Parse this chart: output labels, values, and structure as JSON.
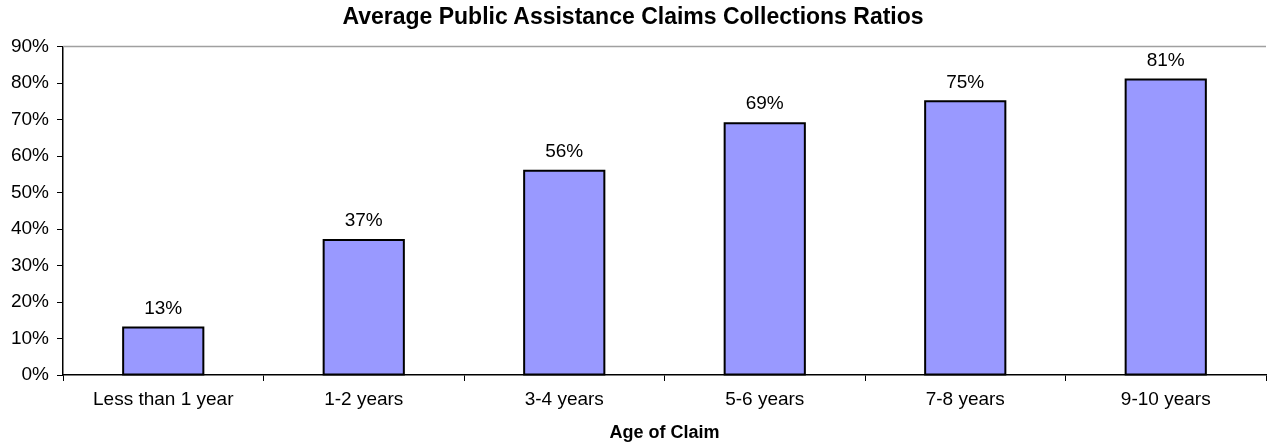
{
  "chart_data": {
    "type": "bar",
    "title": "Average Public Assistance Claims Collections Ratios",
    "xlabel": "Age of Claim",
    "categories": [
      "Less than 1 year",
      "1-2 years",
      "3-4 years",
      "5-6 years",
      "7-8 years",
      "9-10 years"
    ],
    "values": [
      13,
      37,
      56,
      69,
      75,
      81
    ],
    "value_labels": [
      "13%",
      "37%",
      "56%",
      "69%",
      "75%",
      "81%"
    ],
    "color": "#9999ff",
    "ylim": [
      0,
      90
    ],
    "yticks": [
      {
        "value": 0,
        "label": "0%"
      },
      {
        "value": 10,
        "label": "10%"
      },
      {
        "value": 20,
        "label": "20%"
      },
      {
        "value": 30,
        "label": "30%"
      },
      {
        "value": 40,
        "label": "40%"
      },
      {
        "value": 50,
        "label": "50%"
      },
      {
        "value": 60,
        "label": "60%"
      },
      {
        "value": 70,
        "label": "70%"
      },
      {
        "value": 80,
        "label": "80%"
      },
      {
        "value": 90,
        "label": "90%"
      }
    ],
    "grid": false,
    "legend": false
  }
}
